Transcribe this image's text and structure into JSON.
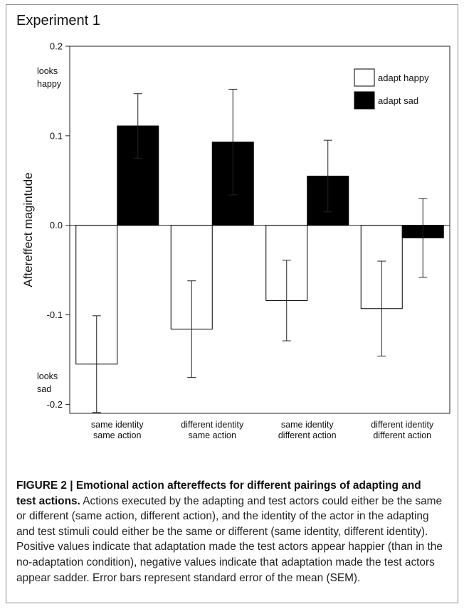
{
  "figure": {
    "panel_title": "Experiment 1",
    "caption_title": "FIGURE 2 | Emotional action aftereffects for different pairings of adapting and test actions.",
    "caption_body": "Actions executed by the adapting and test actors could either be the same or different (same action, different action), and the identity of the actor in the adapting and test stimuli could either be the same or different (same identity, different identity). Positive values indicate that adaptation made the test actors appear happier (than in the no-adaptation condition), negative values indicate that adaptation made the test actors appear sadder. Error bars represent standard error of the mean (SEM)."
  },
  "chart_data": {
    "type": "bar",
    "ylabel": "Aftereffect magintude",
    "ylim": [
      -0.21,
      0.2
    ],
    "yticks": [
      {
        "value": 0.2,
        "label": "0.2"
      },
      {
        "value": 0.1,
        "label": "0.1"
      },
      {
        "value": 0.0,
        "label": "0.0"
      },
      {
        "value": -0.1,
        "label": "-0.1"
      },
      {
        "value": -0.2,
        "label": "-0.2"
      }
    ],
    "y_annotations": {
      "top": [
        "looks",
        "happy"
      ],
      "bottom": [
        "looks",
        "sad"
      ]
    },
    "categories": [
      [
        "same identity",
        "same action"
      ],
      [
        "different identity",
        "same action"
      ],
      [
        "same identity",
        "different action"
      ],
      [
        "different identity",
        "different action"
      ]
    ],
    "series": [
      {
        "name": "adapt happy",
        "color": "#ffffff",
        "values": [
          -0.155,
          -0.116,
          -0.084,
          -0.093
        ],
        "errors": [
          0.054,
          0.054,
          0.045,
          0.053
        ]
      },
      {
        "name": "adapt sad",
        "color": "#000000",
        "values": [
          0.111,
          0.093,
          0.055,
          -0.014
        ],
        "errors": [
          0.036,
          0.059,
          0.04,
          0.044
        ]
      }
    ],
    "legend": "top-right",
    "grid": false
  }
}
